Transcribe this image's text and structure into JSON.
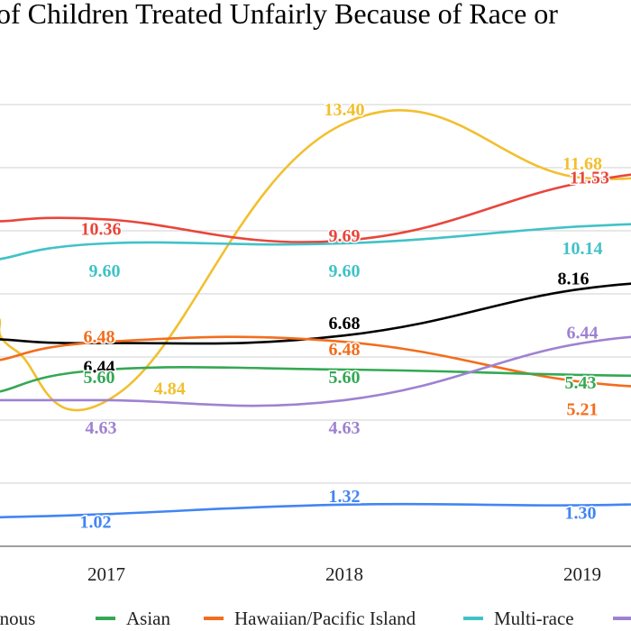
{
  "chart_data": {
    "type": "line",
    "title": "of Children Treated Unfairly Because of Race or",
    "categories": [
      "2017",
      "2018",
      "2019"
    ],
    "x_visible": [
      2016.58,
      2019.6
    ],
    "ylim": [
      0,
      14
    ],
    "grid": true,
    "legend_position": "bottom",
    "series": [
      {
        "key": "yellow",
        "color": "#F2BF2E",
        "values": [
          4.84,
          13.4,
          11.68
        ],
        "labels": [
          "4.84",
          "13.40",
          "11.68"
        ]
      },
      {
        "key": "red",
        "color": "#E8463C",
        "values": [
          10.36,
          9.69,
          11.53
        ],
        "labels": [
          "10.36",
          "9.69",
          "11.53"
        ]
      },
      {
        "key": "cyan",
        "name": "Multi-race",
        "color": "#41C2C7",
        "values": [
          9.6,
          9.6,
          10.14
        ],
        "labels": [
          "9.60",
          "9.60",
          "10.14"
        ]
      },
      {
        "key": "black",
        "color": "#000000",
        "values": [
          6.44,
          6.68,
          8.16
        ],
        "labels": [
          "6.44",
          "6.68",
          "8.16"
        ]
      },
      {
        "key": "orange",
        "name": "Hawaiian/Pacific Island",
        "color": "#F36D1C",
        "values": [
          6.48,
          6.48,
          5.21
        ],
        "labels": [
          "6.48",
          "6.48",
          "5.21"
        ]
      },
      {
        "key": "green",
        "name": "Asian",
        "color": "#34A853",
        "values": [
          5.6,
          5.6,
          5.43
        ],
        "labels": [
          "5.60",
          "5.60",
          "5.43"
        ]
      },
      {
        "key": "purple",
        "color": "#9E82D1",
        "values": [
          4.63,
          4.63,
          6.44
        ],
        "labels": [
          "4.63",
          "4.63",
          "6.44"
        ]
      },
      {
        "key": "blue",
        "color": "#4285F4",
        "values": [
          1.02,
          1.32,
          1.3
        ],
        "labels": [
          "1.02",
          "1.32",
          "1.30"
        ]
      }
    ],
    "legend": [
      {
        "label": "igenous",
        "color": "#4285F4"
      },
      {
        "label": "Asian",
        "color": "#34A853"
      },
      {
        "label": "Hawaiian/Pacific Island",
        "color": "#F36D1C"
      },
      {
        "label": "Multi-race",
        "color": "#41C2C7"
      },
      {
        "label": "",
        "color": "#9E82D1"
      }
    ]
  }
}
